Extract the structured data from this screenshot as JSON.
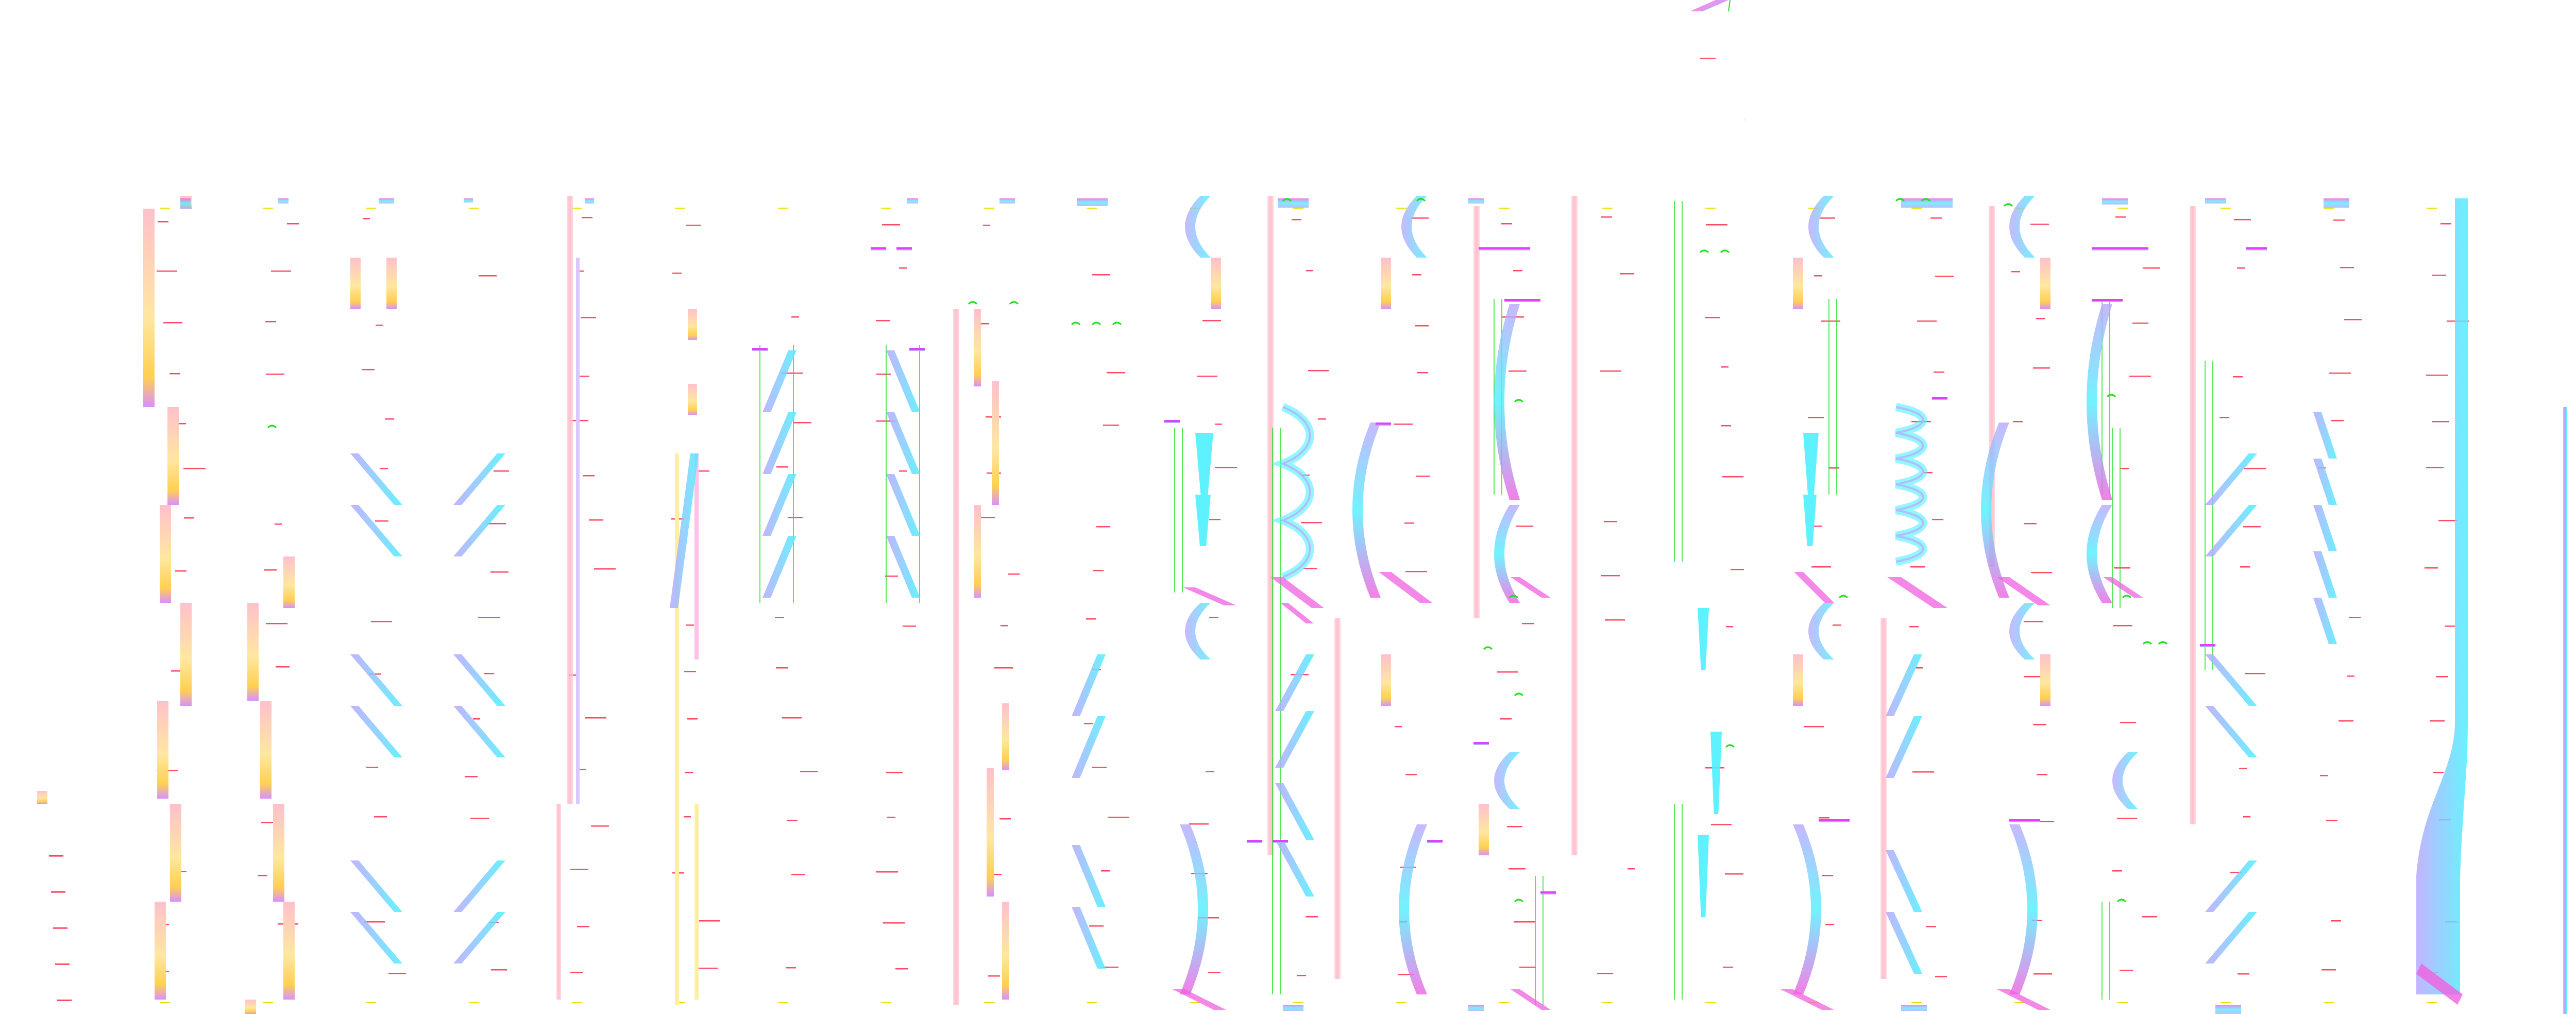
{
  "diagram": {
    "title": "",
    "colors": {
      "background": "#ffffff",
      "cyan": "#4df0ff",
      "light_cyan": "#bff4ff",
      "lavender": "#b9a7ff",
      "pink": "#f060e0",
      "magenta": "#e040ff",
      "yellow": "#fff0a0",
      "peach": "#ffe7a0",
      "orange": "#ffc21a",
      "pink_bar": "#ffc0cc",
      "green": "#1ee01e",
      "label_red": "#ff2a4a",
      "label_yellow": "#e8e000",
      "bar_edge": "#b28bff"
    },
    "legend": [],
    "text_labels": []
  }
}
